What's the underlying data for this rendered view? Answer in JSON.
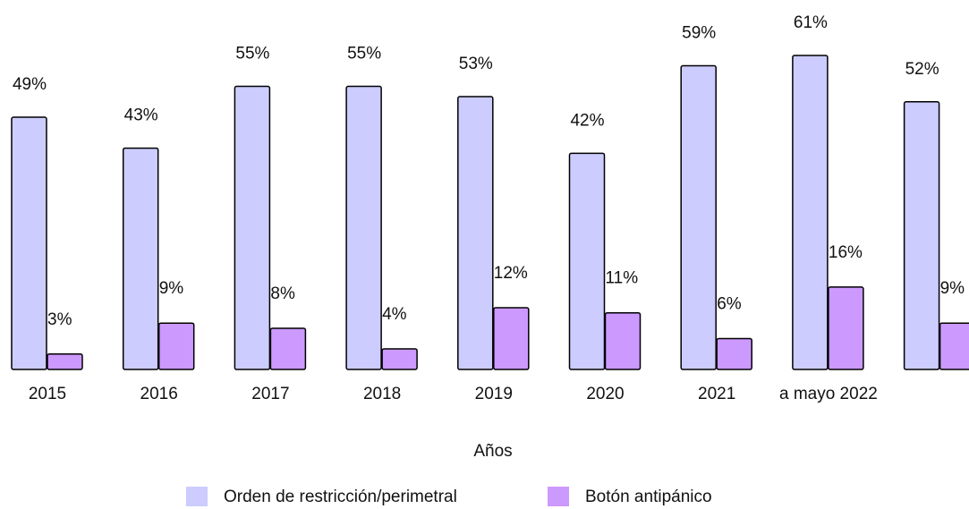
{
  "chart_data": {
    "type": "bar",
    "xlabel": "Años",
    "categories": [
      "2015",
      "2016",
      "2017",
      "2018",
      "2019",
      "2020",
      "2021",
      "a mayo 2022",
      null
    ],
    "series": [
      {
        "name": "Orden de restricción/perimetral",
        "color": "#ccccff",
        "values": [
          49,
          43,
          55,
          55,
          53,
          42,
          59,
          61,
          52
        ],
        "value_labels": [
          "49%",
          "43%",
          "55%",
          "55%",
          "53%",
          "42%",
          "59%",
          "61%",
          "52%"
        ]
      },
      {
        "name": "Botón antipánico",
        "color": "#cc99ff",
        "values": [
          3,
          9,
          8,
          4,
          12,
          11,
          6,
          16,
          9
        ],
        "value_labels": [
          "3%",
          "9%",
          "8%",
          "4%",
          "12%",
          "11%",
          "6%",
          "16%",
          "9%"
        ]
      }
    ]
  }
}
